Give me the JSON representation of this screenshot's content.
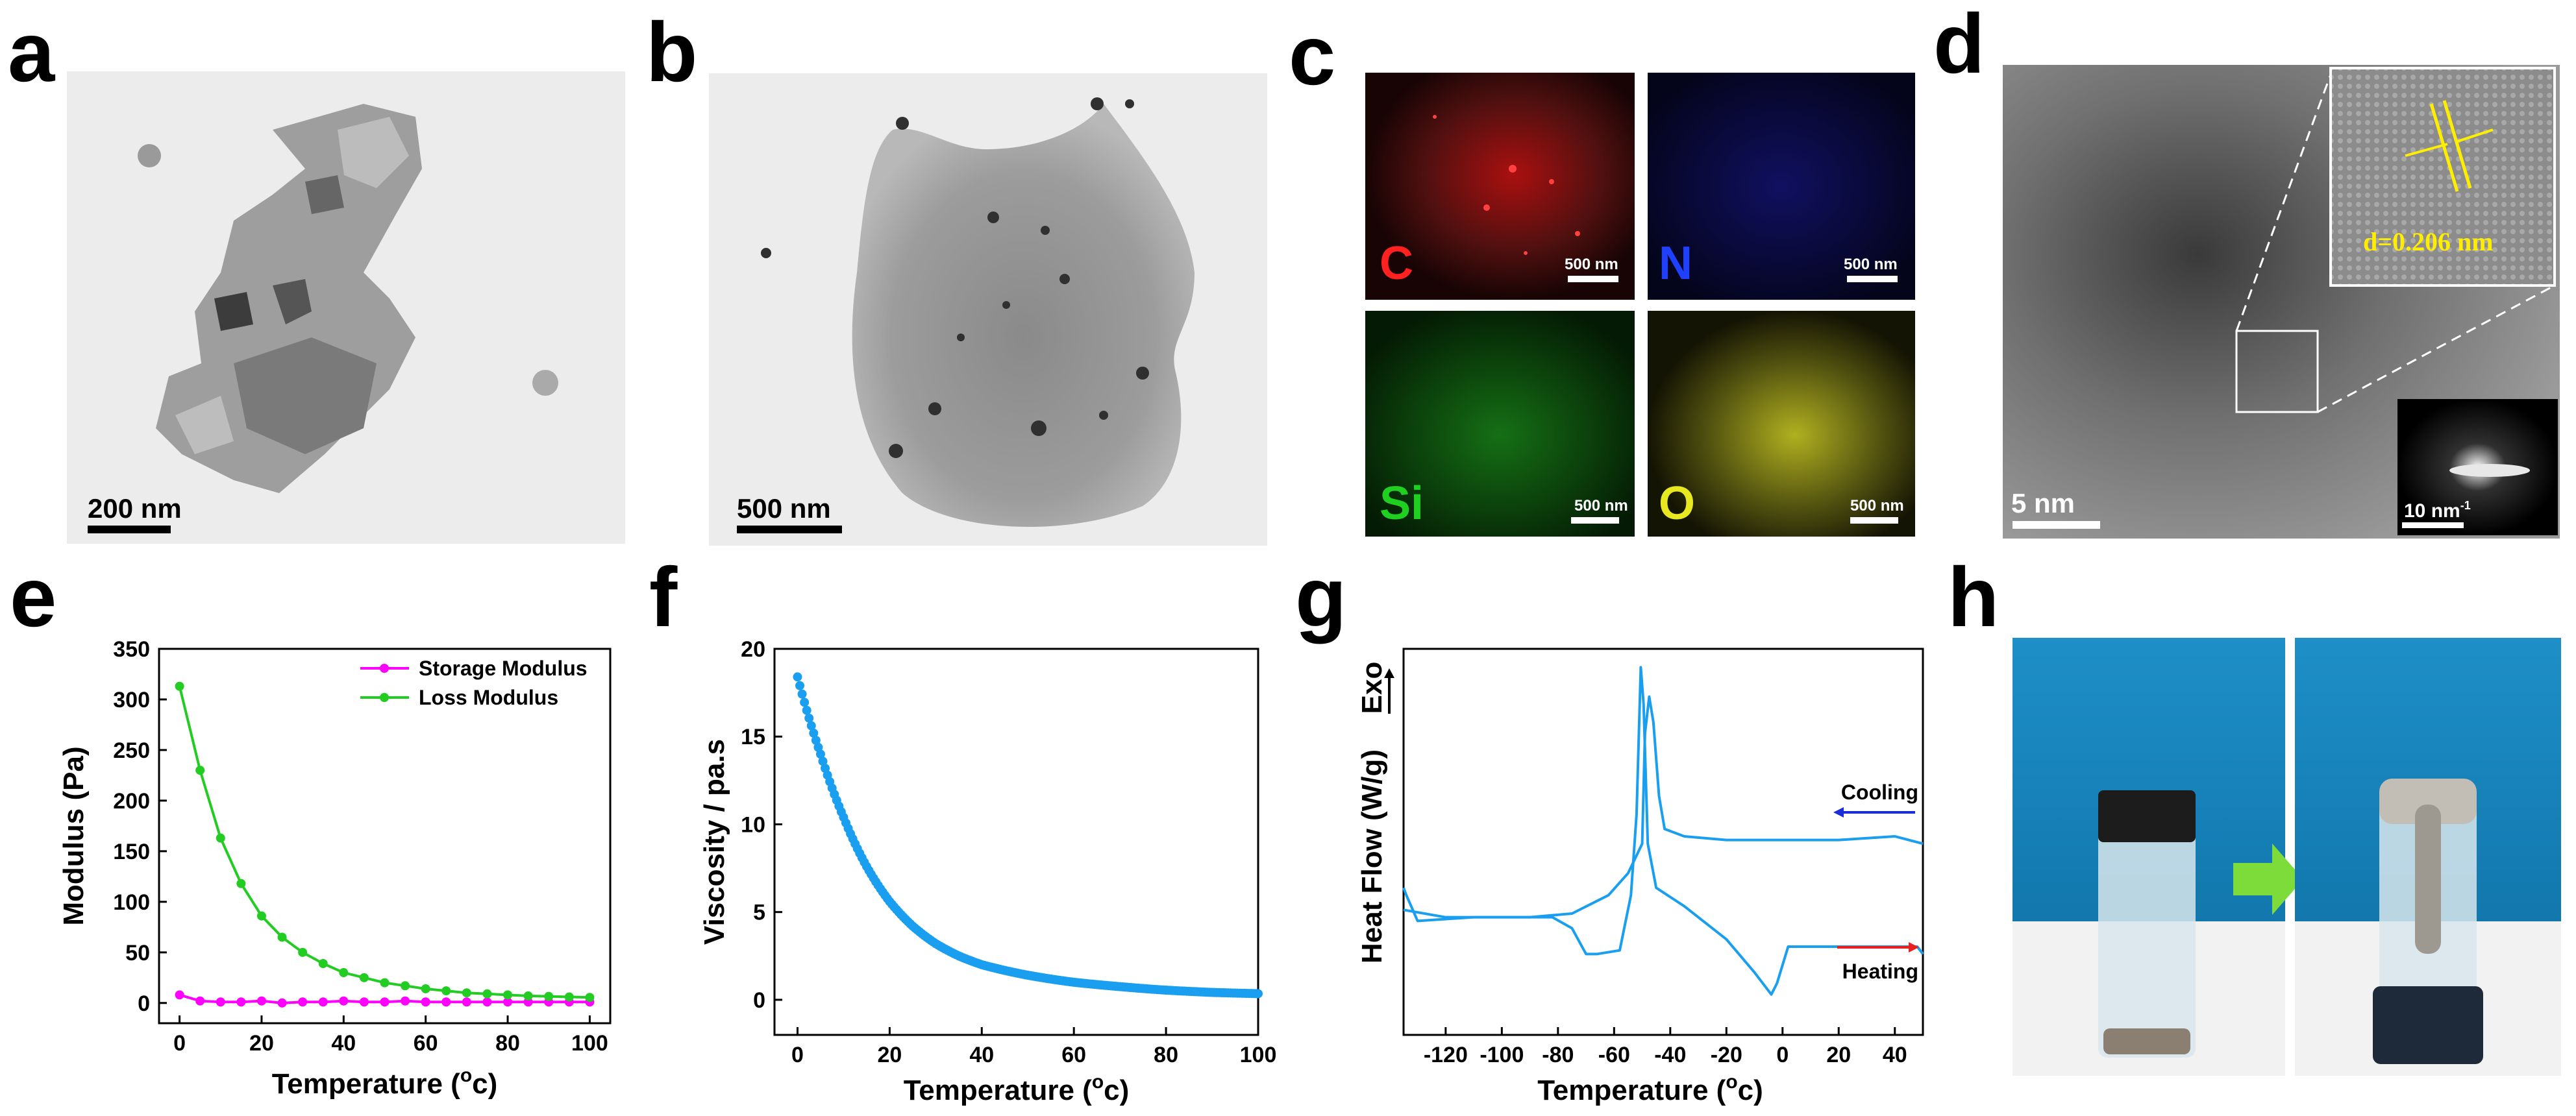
{
  "panels": {
    "a": {
      "label": "a",
      "scale_bar": "200 nm"
    },
    "b": {
      "label": "b",
      "scale_bar": "500 nm"
    },
    "c": {
      "label": "c",
      "maps": [
        {
          "element": "C",
          "color": "#ff2020",
          "scale_bar": "500 nm"
        },
        {
          "element": "N",
          "color": "#2040ff",
          "scale_bar": "500 nm"
        },
        {
          "element": "Si",
          "color": "#20d020",
          "scale_bar": "500 nm"
        },
        {
          "element": "O",
          "color": "#e8e820",
          "scale_bar": "500 nm"
        }
      ]
    },
    "d": {
      "label": "d",
      "scale_bar": "5 nm",
      "inset_text": "d=0.206 nm",
      "saed_scale_bar": "10 nm",
      "saed_scale_sup": "-1"
    },
    "h": {
      "label": "h"
    }
  },
  "chart_data": [
    {
      "panel": "e",
      "type": "line",
      "xlabel": "Temperature (",
      "xlabel_sup": "o",
      "xlabel_end": "c)",
      "ylabel": "Modulus (Pa)",
      "xlim": [
        -5,
        105
      ],
      "ylim": [
        -20,
        350
      ],
      "xticks": [
        0,
        20,
        40,
        60,
        80,
        100
      ],
      "yticks": [
        0,
        50,
        100,
        150,
        200,
        250,
        300,
        350
      ],
      "legend_position": "top-right",
      "x": [
        0,
        5,
        10,
        15,
        20,
        25,
        30,
        35,
        40,
        45,
        50,
        55,
        60,
        65,
        70,
        75,
        80,
        85,
        90,
        95,
        100
      ],
      "series": [
        {
          "name": "Storage Modulus",
          "color": "#ff00ff",
          "values": [
            8,
            2,
            1,
            1,
            2,
            0,
            1,
            1,
            2,
            1,
            1,
            2,
            1,
            1,
            1,
            1,
            1,
            1,
            1,
            1,
            1
          ]
        },
        {
          "name": "Loss Modulus",
          "color": "#22cc22",
          "values": [
            313,
            230,
            163,
            118,
            86,
            65,
            50,
            39,
            30,
            25,
            20,
            17,
            14,
            12,
            10,
            9,
            8,
            7,
            6.5,
            6,
            5.5
          ]
        }
      ]
    },
    {
      "panel": "f",
      "type": "scatter",
      "xlabel": "Temperature (",
      "xlabel_sup": "o",
      "xlabel_end": "c)",
      "ylabel": "Viscosity / pa.s",
      "xlim": [
        -5,
        100
      ],
      "ylim": [
        -2,
        20
      ],
      "xticks": [
        0,
        20,
        40,
        60,
        80,
        100
      ],
      "yticks": [
        0,
        5,
        10,
        15,
        20
      ],
      "color": "#1a9ef0",
      "curve_points": [
        [
          0,
          18.4
        ],
        [
          5,
          14.0
        ],
        [
          10,
          10.4
        ],
        [
          15,
          7.6
        ],
        [
          20,
          5.6
        ],
        [
          25,
          4.2
        ],
        [
          30,
          3.2
        ],
        [
          35,
          2.5
        ],
        [
          40,
          2.0
        ],
        [
          50,
          1.4
        ],
        [
          60,
          1.0
        ],
        [
          70,
          0.75
        ],
        [
          80,
          0.55
        ],
        [
          90,
          0.42
        ],
        [
          100,
          0.35
        ]
      ]
    },
    {
      "panel": "g",
      "type": "line",
      "xlabel": "Temperature (",
      "xlabel_sup": "o",
      "xlabel_end": "c)",
      "ylabel": "Heat Flow (W/g)",
      "exo_label": "Exo",
      "xlim": [
        -135,
        50
      ],
      "xticks": [
        -120,
        -100,
        -80,
        -60,
        -40,
        -20,
        0,
        20,
        40
      ],
      "color": "#1a9ef0",
      "annotations": [
        {
          "text": "Cooling",
          "color": "#1a2ed8",
          "arrow": "left"
        },
        {
          "text": "Heating",
          "color": "#e82020",
          "arrow": "right"
        }
      ],
      "series": [
        {
          "name": "Cooling",
          "points": [
            [
              50,
              0.72
            ],
            [
              40,
              0.74
            ],
            [
              20,
              0.73
            ],
            [
              0,
              0.73
            ],
            [
              -20,
              0.73
            ],
            [
              -35,
              0.74
            ],
            [
              -42,
              0.76
            ],
            [
              -44,
              0.85
            ],
            [
              -46,
              1.05
            ],
            [
              -47.5,
              1.12
            ],
            [
              -49,
              1.02
            ],
            [
              -50,
              0.72
            ],
            [
              -55,
              0.64
            ],
            [
              -62,
              0.58
            ],
            [
              -75,
              0.53
            ],
            [
              -90,
              0.52
            ],
            [
              -110,
              0.52
            ],
            [
              -130,
              0.51
            ],
            [
              -134,
              0.58
            ],
            [
              -135,
              0.6
            ]
          ]
        },
        {
          "name": "Heating",
          "points": [
            [
              -135,
              0.54
            ],
            [
              -120,
              0.52
            ],
            [
              -100,
              0.52
            ],
            [
              -82,
              0.52
            ],
            [
              -75,
              0.49
            ],
            [
              -70,
              0.42
            ],
            [
              -66,
              0.42
            ],
            [
              -58,
              0.43
            ],
            [
              -54,
              0.58
            ],
            [
              -52,
              0.8
            ],
            [
              -50.5,
              1.2
            ],
            [
              -49.5,
              1.1
            ],
            [
              -48,
              0.72
            ],
            [
              -45,
              0.6
            ],
            [
              -35,
              0.55
            ],
            [
              -20,
              0.46
            ],
            [
              -10,
              0.37
            ],
            [
              -4,
              0.31
            ],
            [
              -2,
              0.34
            ],
            [
              2,
              0.44
            ],
            [
              10,
              0.44
            ],
            [
              30,
              0.44
            ],
            [
              48,
              0.44
            ],
            [
              50,
              0.42
            ]
          ]
        }
      ]
    }
  ]
}
